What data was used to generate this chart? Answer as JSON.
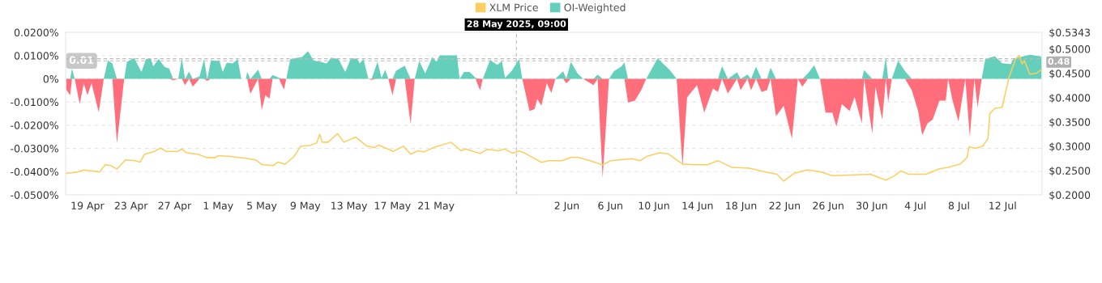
{
  "chart_data": {
    "type": "area",
    "legend": "top",
    "grid": "y",
    "x": [
      "2025-04-17T01:00",
      "2025-04-17T10:00",
      "2025-04-17T14:00",
      "2025-04-17T20:00",
      "2025-04-18T07:00",
      "2025-04-18T16:00",
      "2025-04-19T00:00",
      "2025-04-19T09:00",
      "2025-04-20T01:00",
      "2025-04-20T12:00",
      "2025-04-20T21:00",
      "2025-04-21T07:00",
      "2025-04-21T17:00",
      "2025-04-22T09:00",
      "2025-04-22T15:00",
      "2025-04-23T07:00",
      "2025-04-23T23:00",
      "2025-04-24T09:00",
      "2025-04-24T20:00",
      "2025-04-25T01:00",
      "2025-04-25T13:00",
      "2025-04-26T02:00",
      "2025-04-26T12:00",
      "2025-04-26T21:00",
      "2025-04-27T08:00",
      "2025-04-27T16:00",
      "2025-04-27T23:00",
      "2025-04-28T08:00",
      "2025-04-28T16:00",
      "2025-04-29T07:00",
      "2025-04-29T17:00",
      "2025-04-30T00:00",
      "2025-04-30T08:00",
      "2025-05-01T03:00",
      "2025-05-01T10:00",
      "2025-05-01T19:00",
      "2025-05-02T08:00",
      "2025-05-02T19:00",
      "2025-05-03T03:00",
      "2025-05-03T13:00",
      "2025-05-03T16:00",
      "2025-05-03T23:00",
      "2025-05-04T16:00",
      "2025-05-05T00:00",
      "2025-05-05T08:00",
      "2025-05-05T17:00",
      "2025-05-06T00:00",
      "2025-05-06T14:00",
      "2025-05-07T01:00",
      "2025-05-07T06:00",
      "2025-05-07T15:00",
      "2025-05-08T17:00",
      "2025-05-09T06:00",
      "2025-05-09T18:00",
      "2025-05-10T10:00",
      "2025-05-10T23:00",
      "2025-05-11T09:00",
      "2025-05-12T01:00",
      "2025-05-12T16:00",
      "2025-05-13T05:00",
      "2025-05-13T18:00",
      "2025-05-14T00:00",
      "2025-05-14T08:00",
      "2025-05-14T19:00",
      "2025-05-15T02:00",
      "2025-05-15T15:00",
      "2025-05-16T00:00",
      "2025-05-16T08:00",
      "2025-05-16T15:00",
      "2025-05-17T00:00",
      "2025-05-17T08:00",
      "2025-05-18T03:00",
      "2025-05-18T16:00",
      "2025-05-19T01:00",
      "2025-05-19T11:00",
      "2025-05-20T00:00",
      "2025-05-20T16:00",
      "2025-05-21T01:00",
      "2025-05-21T08:00",
      "2025-05-22T22:00",
      "2025-05-23T04:00",
      "2025-05-23T14:00",
      "2025-05-24T02:00",
      "2025-05-24T15:00",
      "2025-05-25T01:00",
      "2025-05-25T07:00",
      "2025-05-25T23:00",
      "2025-05-26T15:00",
      "2025-05-27T01:00",
      "2025-05-27T08:00",
      "2025-05-27T23:00",
      "2025-05-28T12:00",
      "2025-05-28T15:00",
      "2025-05-28T22:00",
      "2025-05-29T14:00",
      "2025-05-30T01:00",
      "2025-05-30T07:00",
      "2025-05-30T16:00",
      "2025-05-31T04:00",
      "2025-05-31T14:00",
      "2025-05-31T23:00",
      "2025-06-01T16:00",
      "2025-06-01T23:00",
      "2025-06-02T09:00",
      "2025-06-03T00:00",
      "2025-06-03T12:00",
      "2025-06-04T11:00",
      "2025-06-04T20:00",
      "2025-06-05T07:00",
      "2025-06-05T21:00",
      "2025-06-06T08:00",
      "2025-06-07T00:00",
      "2025-06-07T07:00",
      "2025-06-07T15:00",
      "2025-06-08T06:00",
      "2025-06-08T20:00",
      "2025-06-09T07:00",
      "2025-06-10T08:00",
      "2025-06-11T10:00",
      "2025-06-12T02:00",
      "2025-06-12T15:00",
      "2025-06-13T01:00",
      "2025-06-13T23:00",
      "2025-06-14T15:00",
      "2025-06-15T10:00",
      "2025-06-15T21:00",
      "2025-06-16T06:00",
      "2025-06-16T19:00",
      "2025-06-17T15:00",
      "2025-06-17T23:00",
      "2025-06-18T14:00",
      "2025-06-18T22:00",
      "2025-06-19T09:00",
      "2025-06-19T21:00",
      "2025-06-20T09:00",
      "2025-06-20T17:00",
      "2025-06-21T05:00",
      "2025-06-21T22:00",
      "2025-06-22T16:00",
      "2025-06-23T05:00",
      "2025-06-23T15:00",
      "2025-06-24T03:00",
      "2025-06-24T17:00",
      "2025-06-25T06:00",
      "2025-06-25T18:00",
      "2025-06-26T09:00",
      "2025-06-26T18:00",
      "2025-06-27T06:00",
      "2025-06-27T23:00",
      "2025-06-28T10:00",
      "2025-06-29T02:00",
      "2025-06-29T07:00",
      "2025-06-30T01:00",
      "2025-06-30T08:00",
      "2025-06-30T23:00",
      "2025-07-01T07:00",
      "2025-07-01T12:00",
      "2025-07-01T20:00",
      "2025-07-02T10:00",
      "2025-07-03T01:00",
      "2025-07-03T16:00",
      "2025-07-04T06:00",
      "2025-07-04T15:00",
      "2025-07-05T03:00",
      "2025-07-05T14:00",
      "2025-07-06T05:00",
      "2025-07-06T19:00",
      "2025-07-07T00:00",
      "2025-07-07T10:00",
      "2025-07-07T23:00",
      "2025-07-08T14:00",
      "2025-07-09T00:00",
      "2025-07-09T10:00",
      "2025-07-09T17:00",
      "2025-07-10T02:00",
      "2025-07-10T10:00",
      "2025-07-11T07:00",
      "2025-07-11T23:00",
      "2025-07-12T18:00",
      "2025-07-13T01:00",
      "2025-07-13T13:00",
      "2025-07-14T12:00",
      "2025-07-15T10:00",
      "2025-07-15T15:00"
    ],
    "series": [
      {
        "name": "XLM Price",
        "type": "line",
        "axis": "y2",
        "color": "#fbcf5f",
        "line_style": "solid",
        "x": [
          "2025-04-17T01:00",
          "2025-04-18T00:00",
          "2025-04-18T16:00",
          "2025-04-19T08:00",
          "2025-04-20T03:00",
          "2025-04-20T15:00",
          "2025-04-21T04:00",
          "2025-04-21T17:00",
          "2025-04-22T12:00",
          "2025-04-23T07:00",
          "2025-04-23T20:00",
          "2025-04-24T06:00",
          "2025-04-25T04:00",
          "2025-04-25T17:00",
          "2025-04-26T05:00",
          "2025-04-27T07:00",
          "2025-04-27T16:00",
          "2025-04-28T02:00",
          "2025-04-29T03:00",
          "2025-04-29T23:00",
          "2025-04-30T18:00",
          "2025-05-01T00:00",
          "2025-05-02T02:00",
          "2025-05-03T09:00",
          "2025-05-04T11:00",
          "2025-05-05T00:00",
          "2025-05-06T01:00",
          "2025-05-06T11:00",
          "2025-05-07T03:00",
          "2025-05-07T22:00",
          "2025-05-08T14:00",
          "2025-05-09T09:00",
          "2025-05-10T01:00",
          "2025-05-10T08:00",
          "2025-05-10T13:00",
          "2025-05-11T02:00",
          "2025-05-11T23:00",
          "2025-05-12T13:00",
          "2025-05-13T15:00",
          "2025-05-14T16:00",
          "2025-05-15T08:00",
          "2025-05-15T18:00",
          "2025-05-17T02:00",
          "2025-05-18T00:00",
          "2025-05-18T16:00",
          "2025-05-19T08:00",
          "2025-05-19T21:00",
          "2025-05-20T22:00",
          "2025-05-22T09:00",
          "2025-05-23T07:00",
          "2025-05-23T17:00",
          "2025-05-25T01:00",
          "2025-05-25T17:00",
          "2025-05-26T18:00",
          "2025-05-27T07:00",
          "2025-05-28T01:00",
          "2025-05-28T15:00",
          "2025-05-29T02:00",
          "2025-05-30T01:00",
          "2025-05-30T16:00",
          "2025-05-31T08:00",
          "2025-06-01T14:00",
          "2025-06-02T09:00",
          "2025-06-03T00:00",
          "2025-06-04T03:00",
          "2025-06-05T07:00",
          "2025-06-06T01:00",
          "2025-06-07T00:00",
          "2025-06-07T23:00",
          "2025-06-08T18:00",
          "2025-06-09T09:00",
          "2025-06-10T12:00",
          "2025-06-11T07:00",
          "2025-06-12T15:00",
          "2025-06-13T16:00",
          "2025-06-14T22:00",
          "2025-06-15T21:00",
          "2025-06-17T04:00",
          "2025-06-18T18:00",
          "2025-06-20T08:00",
          "2025-06-21T07:00",
          "2025-06-21T22:00",
          "2025-06-22T21:00",
          "2025-06-24T03:00",
          "2025-06-25T10:00",
          "2025-06-26T09:00",
          "2025-06-27T23:00",
          "2025-06-29T21:00",
          "2025-07-01T07:00",
          "2025-07-02T02:00",
          "2025-07-02T16:00",
          "2025-07-03T09:00",
          "2025-07-04T23:00",
          "2025-07-06T05:00",
          "2025-07-07T00:00",
          "2025-07-08T03:00",
          "2025-07-08T18:00",
          "2025-07-08T22:00",
          "2025-07-09T13:00",
          "2025-07-10T05:00",
          "2025-07-10T16:00",
          "2025-07-10T20:00",
          "2025-07-11T07:00",
          "2025-07-11T23:00",
          "2025-07-12T14:00",
          "2025-07-13T05:00",
          "2025-07-13T13:00",
          "2025-07-13T19:00",
          "2025-07-14T00:00",
          "2025-07-14T12:00",
          "2025-07-15T03:00",
          "2025-07-15T15:00"
        ],
        "values": [
          0.2442,
          0.2467,
          0.2513,
          0.2495,
          0.2472,
          0.2618,
          0.2602,
          0.2531,
          0.2718,
          0.2707,
          0.2672,
          0.2837,
          0.2895,
          0.2965,
          0.2895,
          0.2895,
          0.2943,
          0.2866,
          0.2837,
          0.2767,
          0.2767,
          0.2808,
          0.2789,
          0.2755,
          0.2718,
          0.2625,
          0.2602,
          0.2672,
          0.2631,
          0.2778,
          0.3001,
          0.3013,
          0.307,
          0.3248,
          0.3083,
          0.3083,
          0.326,
          0.3083,
          0.3188,
          0.3001,
          0.2972,
          0.3024,
          0.2895,
          0.3001,
          0.2837,
          0.2906,
          0.2883,
          0.2986,
          0.3083,
          0.2906,
          0.2943,
          0.285,
          0.2937,
          0.2906,
          0.2943,
          0.2855,
          0.2901,
          0.2866,
          0.2746,
          0.2669,
          0.2704,
          0.2704,
          0.2774,
          0.2774,
          0.2704,
          0.262,
          0.2704,
          0.2725,
          0.2746,
          0.2704,
          0.2796,
          0.2866,
          0.2845,
          0.2634,
          0.262,
          0.262,
          0.2704,
          0.2564,
          0.2549,
          0.2465,
          0.2423,
          0.2283,
          0.2444,
          0.2515,
          0.2465,
          0.2394,
          0.2409,
          0.2423,
          0.2304,
          0.2394,
          0.2493,
          0.2423,
          0.2423,
          0.2536,
          0.2564,
          0.2634,
          0.2774,
          0.2985,
          0.2957,
          0.3006,
          0.3167,
          0.3674,
          0.3779,
          0.38,
          0.4412,
          0.4798,
          0.4869,
          0.4693,
          0.4762,
          0.4481,
          0.4502,
          0.4588
        ]
      },
      {
        "name": "OI-Weighted",
        "color": "#64d0bb",
        "values": [
          0,
          0,
          0.0044,
          0,
          0,
          0,
          0,
          0,
          0,
          0,
          0.0079,
          0.0066,
          0,
          0,
          0.0073,
          0.0089,
          0.0029,
          0.0085,
          0.0085,
          0.0054,
          0.0085,
          0.0051,
          0.0044,
          0,
          0,
          0.0089,
          0,
          0.0031,
          0,
          0.001,
          0.0085,
          0,
          0.0079,
          0.0076,
          0.0029,
          0.0069,
          0.0066,
          0.0085,
          0,
          0,
          0.0029,
          0,
          0.0039,
          0,
          0,
          0,
          0.0016,
          0.0004,
          0,
          0,
          0.0085,
          0.0094,
          0.0119,
          0.0079,
          0.0073,
          0.0066,
          0.0091,
          0.0085,
          0.0029,
          0.0089,
          0.0085,
          0.0066,
          0.0085,
          0,
          0,
          0.0073,
          0.0004,
          0.0039,
          0,
          0,
          0.0035,
          0.0056,
          0,
          0,
          0.0076,
          0.0023,
          0.0094,
          0.0073,
          0.0101,
          0.0101,
          0,
          0.0029,
          0.0029,
          0.0004,
          0,
          0,
          0.0081,
          0.006,
          0.0076,
          0.0004,
          0.0035,
          0.0076,
          0.0085,
          0,
          0,
          0,
          0,
          0,
          0,
          0,
          0,
          0.0033,
          0,
          0.0073,
          0.0022,
          0,
          0,
          0.0018,
          0,
          0,
          0.0033,
          0.0052,
          0.007,
          0,
          0,
          0,
          0,
          0.0088,
          0.004,
          0,
          0,
          0,
          0,
          0,
          0,
          0,
          0.0055,
          0,
          0.0028,
          0,
          0.0018,
          0,
          0.0052,
          0,
          0,
          0.0048,
          0,
          0,
          0,
          0,
          0,
          0.0022,
          0.0058,
          0,
          0,
          0,
          0,
          0,
          0,
          0,
          0,
          0.0037,
          0,
          0,
          0,
          0.0093,
          0,
          0,
          0.0078,
          0.0033,
          0,
          0,
          0,
          0,
          0,
          0,
          0,
          0,
          0,
          0,
          0,
          0,
          0,
          0,
          0,
          0.0085,
          0.0097,
          0.0067,
          0.0063,
          0.0088,
          0.0093,
          0.0103,
          0.0097,
          0.0093
        ]
      },
      {
        "color": "#ff6e7a",
        "values": [
          -0.0046,
          -0.0071,
          0,
          0,
          -0.0109,
          -0.002,
          -0.0071,
          -0.0019,
          -0.0144,
          0,
          0,
          0,
          -0.0278,
          0,
          0,
          0,
          0,
          0,
          0,
          0,
          0,
          0,
          0,
          -0.0006,
          0,
          0,
          -0.0027,
          0,
          -0.0034,
          0,
          0,
          -0.0009,
          0,
          0,
          0,
          0,
          0,
          0,
          0,
          0,
          0,
          -0.0065,
          0,
          -0.0134,
          -0.0071,
          -0.0086,
          0,
          0,
          -0.0046,
          0,
          0,
          0,
          0,
          0,
          0,
          0,
          0,
          0,
          0,
          0,
          0,
          0,
          0,
          0,
          -0.0005,
          0,
          0,
          0,
          0,
          -0.0071,
          0,
          0,
          -0.0194,
          0,
          0,
          0,
          0,
          0,
          0,
          0,
          0,
          0,
          0,
          0,
          -0.005,
          0,
          0,
          0,
          0,
          0,
          0,
          0,
          0,
          0,
          -0.0139,
          -0.0131,
          -0.0087,
          -0.0116,
          -0.0019,
          -0.0061,
          0,
          0,
          -0.0019,
          0,
          0,
          0,
          -0.0027,
          0,
          -0.0427,
          0,
          0,
          0,
          0,
          -0.0102,
          -0.0094,
          -0.0049,
          0,
          0,
          0,
          0,
          -0.0378,
          -0.008,
          -0.0027,
          -0.0146,
          -0.0042,
          -0.0057,
          0,
          -0.0064,
          0,
          -0.0049,
          0,
          -0.0049,
          0,
          -0.0057,
          -0.0049,
          0,
          -0.0161,
          -0.0116,
          -0.0258,
          0,
          -0.0034,
          0,
          0,
          0,
          -0.0146,
          -0.0146,
          -0.0206,
          -0.0109,
          -0.0139,
          -0.0079,
          -0.0191,
          0,
          -0.0236,
          -0.0034,
          -0.0176,
          0,
          -0.0101,
          0,
          0,
          0,
          -0.0049,
          -0.0139,
          -0.0243,
          -0.0191,
          -0.0176,
          -0.0094,
          -0.0094,
          0,
          -0.0094,
          -0.0184,
          0,
          -0.0251,
          0,
          -0.0124,
          0,
          0,
          0,
          0,
          0,
          0,
          0,
          0,
          0,
          0
        ]
      }
    ],
    "xlim": [
      "2025-04-17T00:00",
      "2025-07-15T15:00"
    ],
    "xticks": [
      {
        "value": "2025-04-19",
        "label": "19 Apr"
      },
      {
        "value": "2025-04-23",
        "label": "23 Apr"
      },
      {
        "value": "2025-04-27",
        "label": "27 Apr"
      },
      {
        "value": "2025-05-01",
        "label": "1 May"
      },
      {
        "value": "2025-05-05",
        "label": "5 May"
      },
      {
        "value": "2025-05-09",
        "label": "9 May"
      },
      {
        "value": "2025-05-13",
        "label": "13 May"
      },
      {
        "value": "2025-05-17",
        "label": "17 May"
      },
      {
        "value": "2025-05-21",
        "label": "21 May"
      },
      {
        "value": "2025-06-02",
        "label": "2 Jun"
      },
      {
        "value": "2025-06-06",
        "label": "6 Jun"
      },
      {
        "value": "2025-06-10",
        "label": "10 Jun"
      },
      {
        "value": "2025-06-14",
        "label": "14 Jun"
      },
      {
        "value": "2025-06-18",
        "label": "18 Jun"
      },
      {
        "value": "2025-06-22",
        "label": "22 Jun"
      },
      {
        "value": "2025-06-26",
        "label": "26 Jun"
      },
      {
        "value": "2025-06-30",
        "label": "30 Jun"
      },
      {
        "value": "2025-07-04",
        "label": "4 Jul"
      },
      {
        "value": "2025-07-08",
        "label": "8 Jul"
      },
      {
        "value": "2025-07-12",
        "label": "12 Jul"
      }
    ],
    "ylim": [
      -0.05,
      0.02
    ],
    "yticks": [
      {
        "value": -0.05,
        "label": "-0.0500%"
      },
      {
        "value": -0.04,
        "label": "-0.0400%"
      },
      {
        "value": -0.03,
        "label": "-0.0300%"
      },
      {
        "value": -0.02,
        "label": "-0.0200%"
      },
      {
        "value": -0.01,
        "label": "-0.0100%"
      },
      {
        "value": 0,
        "label": "0%"
      },
      {
        "value": 0.01,
        "label": "0.0100%"
      },
      {
        "value": 0.02,
        "label": "0.0200%"
      }
    ],
    "y2lim": [
      0.2,
      0.5343
    ],
    "y2ticks": [
      {
        "value": 0.2,
        "label": "$0.2000"
      },
      {
        "value": 0.25,
        "label": "$0.2500"
      },
      {
        "value": 0.3,
        "label": "$0.3000"
      },
      {
        "value": 0.35,
        "label": "$0.3500"
      },
      {
        "value": 0.4,
        "label": "$0.4000"
      },
      {
        "value": 0.45,
        "label": "$0.4500"
      },
      {
        "value": 0.5,
        "label": "$0.5000"
      },
      {
        "value": 0.5343,
        "label": "$0.5343"
      }
    ],
    "ref_lines": [
      {
        "axis": "x",
        "value": "2025-05-28T09:00",
        "label": "28 May 2025, 09:00",
        "color": "#bbbbbb",
        "line_style": "dashed"
      },
      {
        "axis": "y",
        "value": 0.0077,
        "label": "0.01",
        "color": "#bbbbbb",
        "line_style": "dashed"
      },
      {
        "axis": "y2",
        "value": 0.48,
        "label": "0.48",
        "color": "#bbbbbb",
        "line_style": "dashed"
      }
    ]
  }
}
